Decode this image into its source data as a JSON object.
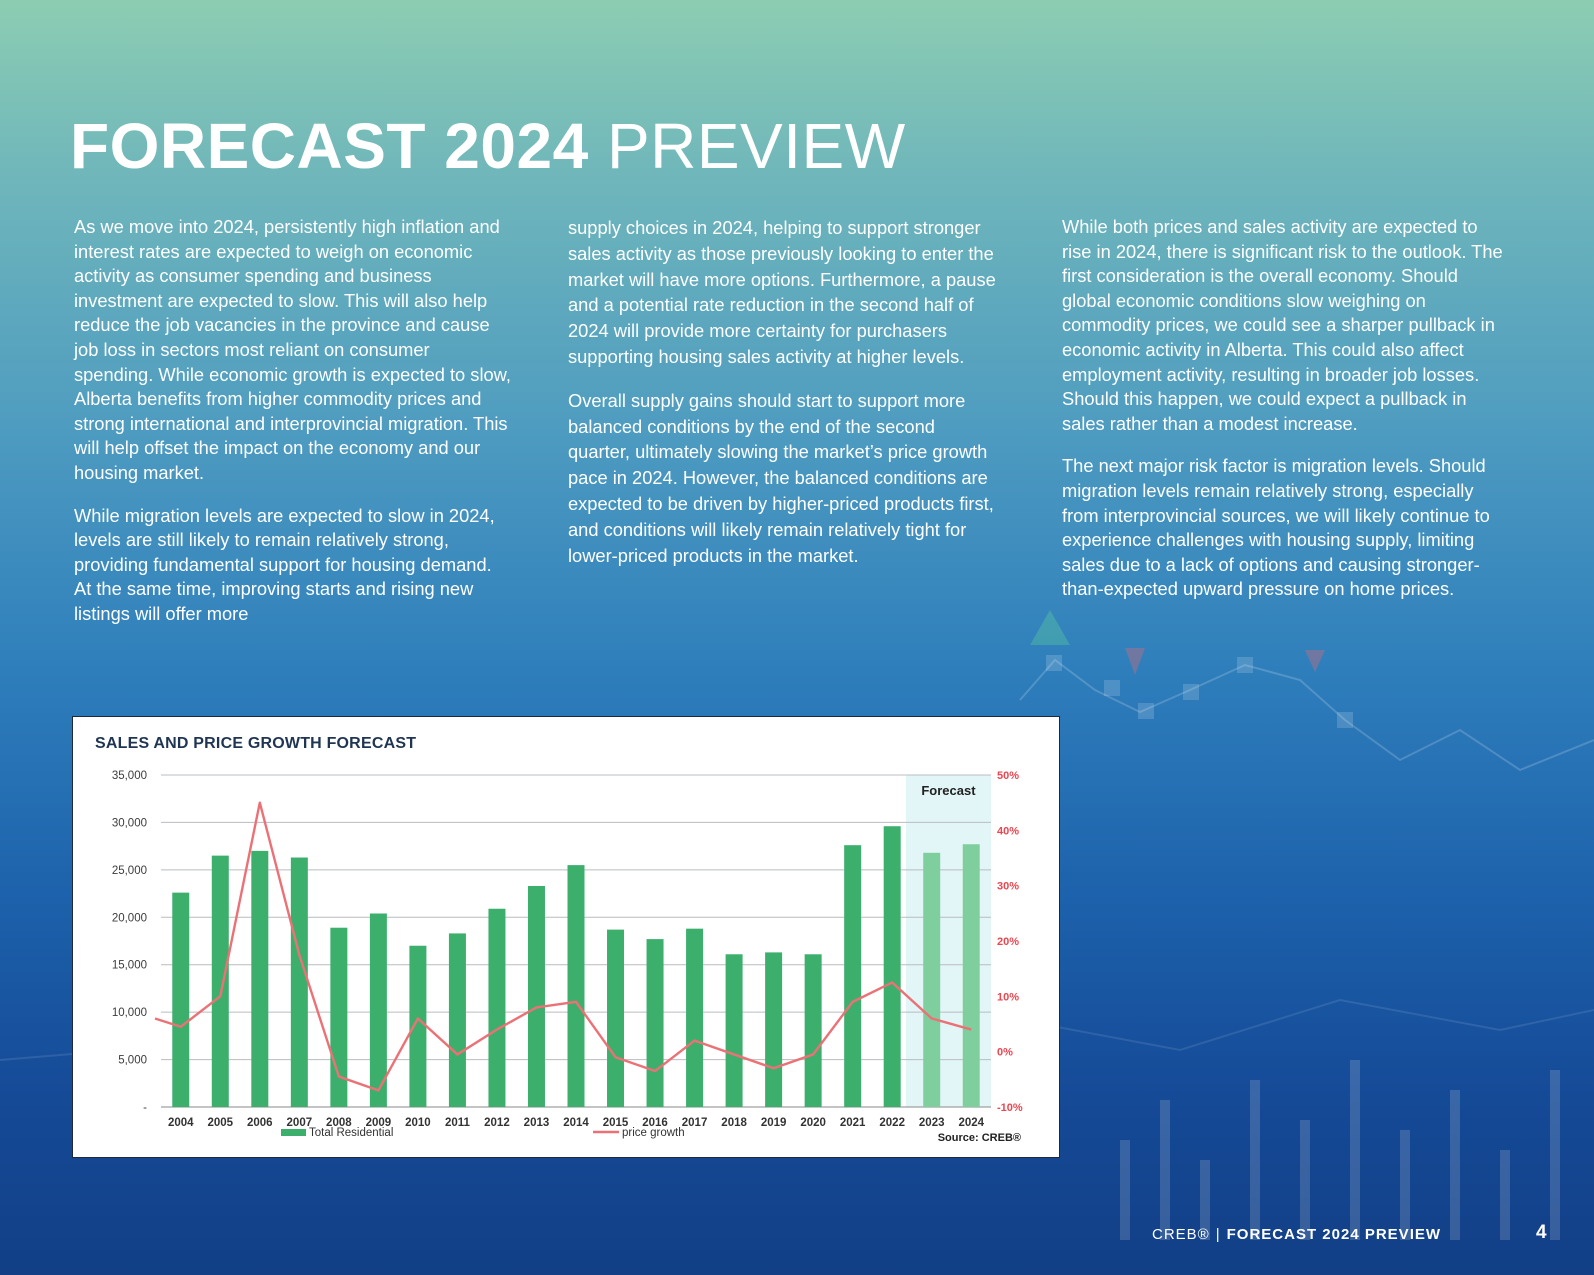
{
  "header": {
    "title_bold": "FORECAST 2024",
    "title_light": "PREVIEW"
  },
  "columns": {
    "col1": [
      "As we move into 2024, persistently high inflation and interest rates are expected to weigh on economic activity as consumer spending and business investment are expected to slow. This will also help reduce the job vacancies in the province and cause job loss in sectors most reliant on consumer spending. While economic growth is expected to slow, Alberta benefits from higher commodity prices and strong international and interprovincial migration. This will help offset the impact on the economy and our housing market.",
      "While migration levels are expected to slow in 2024, levels are still likely to remain relatively strong, providing fundamental support for housing demand. At the same time, improving starts and rising new listings will offer more"
    ],
    "col2": [
      "supply choices in 2024, helping to support stronger sales activity as those previously looking to enter the market will have more options. Furthermore, a pause and a potential rate reduction in the second half of 2024 will provide more certainty for purchasers supporting housing sales activity at higher levels.",
      "Overall supply gains should start to support more balanced conditions by the end of the second quarter, ultimately slowing the market’s price growth pace in 2024. However, the balanced conditions are expected to be driven by higher-priced products first, and conditions will likely remain relatively tight for lower-priced products in the market."
    ],
    "col3": [
      "While both prices and sales activity are expected to rise in 2024, there is significant risk to the outlook. The first consideration is the overall economy. Should global economic conditions slow weighing on commodity prices, we could see a sharper pullback in economic activity in Alberta. This could also affect employment activity, resulting in broader job losses. Should this happen, we could expect a pullback in sales rather than a modest increase.",
      "The next major risk factor is migration levels. Should migration levels remain relatively strong, especially from interprovincial sources, we will likely continue to experience challenges with housing supply, limiting sales due to a lack of options and causing stronger-than-expected upward pressure on home prices."
    ]
  },
  "chart_data": {
    "type": "bar",
    "title": "SALES AND PRICE GROWTH FORECAST",
    "categories": [
      "2004",
      "2005",
      "2006",
      "2007",
      "2008",
      "2009",
      "2010",
      "2011",
      "2012",
      "2013",
      "2014",
      "2015",
      "2016",
      "2017",
      "2018",
      "2019",
      "2020",
      "2021",
      "2022",
      "2023",
      "2024"
    ],
    "series": [
      {
        "name": "Total Residential",
        "axis": "left",
        "type": "bar",
        "values": [
          22600,
          26500,
          27000,
          26300,
          18900,
          20400,
          17000,
          18300,
          20900,
          23300,
          25500,
          18700,
          17700,
          18800,
          16100,
          16300,
          16100,
          27600,
          29600,
          26800,
          27700
        ],
        "forecast_from": "2023"
      },
      {
        "name": "price growth",
        "axis": "right",
        "type": "line",
        "values": [
          4.5,
          10,
          45,
          17.5,
          -4.5,
          -7,
          6,
          -0.5,
          4,
          8,
          9,
          -1,
          -3.5,
          2,
          -0.5,
          -3,
          -0.5,
          9,
          12.5,
          6,
          4
        ]
      }
    ],
    "y_left": {
      "ylim": [
        0,
        35000
      ],
      "ticks": [
        "-",
        "5,000",
        "10,000",
        "15,000",
        "20,000",
        "25,000",
        "30,000",
        "35,000"
      ]
    },
    "y_right": {
      "ylim": [
        -10,
        50
      ],
      "ticks": [
        "-10%",
        "0%",
        "10%",
        "20%",
        "30%",
        "40%",
        "50%"
      ]
    },
    "forecast_label": "Forecast",
    "source": "Source: CREB®",
    "grid": true,
    "legend_position": "bottom",
    "colors": {
      "bar": "#3daf6d",
      "bar_forecast": "#7fcf9e",
      "forecast_shade": "#e2f6f8",
      "line": "#ec7176",
      "right_axis_text": "#ec4650",
      "left_axis_text": "#3c3c3c"
    }
  },
  "footer": {
    "brand": "CREB®",
    "separator": "|",
    "title": "FORECAST 2024 PREVIEW",
    "page": "4"
  }
}
